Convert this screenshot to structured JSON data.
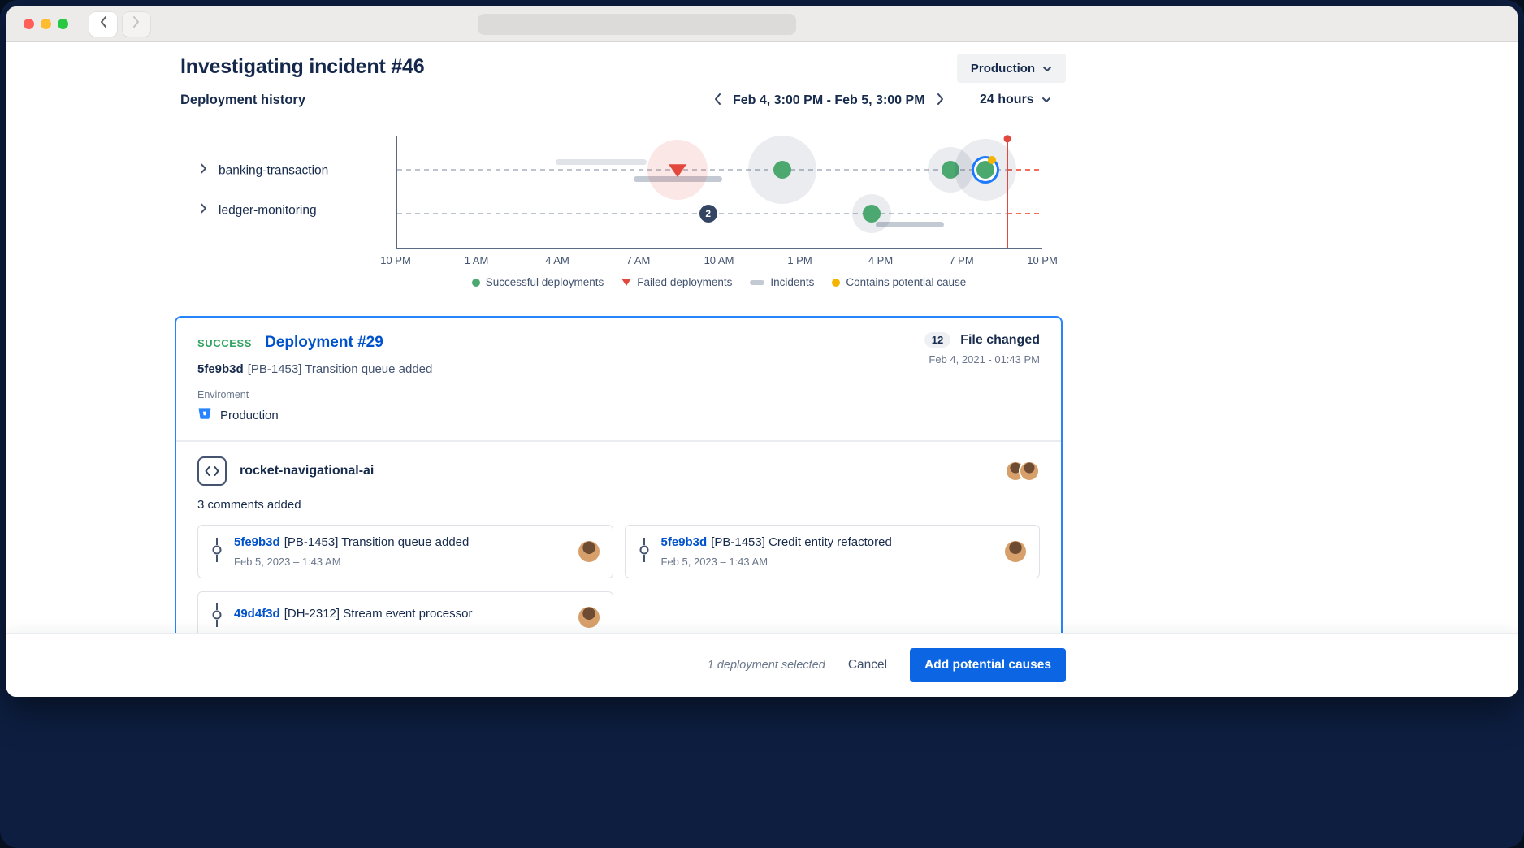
{
  "page": {
    "title": "Investigating incident #46",
    "env_dropdown_label": "Production",
    "section": {
      "title": "Deployment history",
      "date_range": "Feb 4, 3:00 PM - Feb 5, 3:00 PM",
      "range_label": "24 hours"
    }
  },
  "chart": {
    "rows": [
      {
        "label": "banking-transaction"
      },
      {
        "label": "ledger-monitoring"
      }
    ],
    "x_ticks": [
      "10 PM",
      "1 AM",
      "4 AM",
      "7 AM",
      "10 AM",
      "1 PM",
      "4 PM",
      "7 PM",
      "10 PM"
    ],
    "legend": [
      {
        "icon": "success-dot",
        "label": "Successful deployments"
      },
      {
        "icon": "failed-triangle",
        "label": "Failed deployments"
      },
      {
        "icon": "incident-bar",
        "label": "Incidents"
      },
      {
        "icon": "potential-cause-dot",
        "label": "Contains potential cause"
      }
    ],
    "markers": [
      {
        "type": "bar",
        "row": 0,
        "x": 24.5,
        "w": 14.2,
        "dy": -10,
        "shade": "light"
      },
      {
        "type": "bar",
        "row": 0,
        "x": 36.6,
        "w": 13.8,
        "dy": 11,
        "shade": "dark"
      },
      {
        "type": "failed",
        "row": 0,
        "x": 43.5,
        "halo": 74
      },
      {
        "type": "success",
        "row": 0,
        "x": 59.7,
        "halo": 84
      },
      {
        "type": "success",
        "row": 0,
        "x": 85.8,
        "halo": 56
      },
      {
        "type": "success",
        "row": 0,
        "x": 91.2,
        "halo": 76,
        "selected": true,
        "potential": true
      },
      {
        "type": "badge",
        "row": 1,
        "x": 48.2,
        "label": "2"
      },
      {
        "type": "success",
        "row": 1,
        "x": 73.5,
        "halo": 48
      },
      {
        "type": "bar",
        "row": 1,
        "x": 74.2,
        "w": 10.6,
        "dy": 13,
        "shade": "dark"
      },
      {
        "type": "cursor",
        "x": 94.6
      }
    ],
    "colors": {
      "success": "#4BA86F",
      "failed": "#E2483D",
      "incident": "#C4CAD3",
      "potential_cause": "#F5B400",
      "selected_ring": "#1D7AFC",
      "cursor": "#E2483D"
    }
  },
  "deployment": {
    "status": "SUCCESS",
    "title": "Deployment #29",
    "commit": {
      "hash": "5fe9b3d",
      "message": "[PB-1453] Transition queue added"
    },
    "files": {
      "count": "12",
      "label": "File changed",
      "timestamp": "Feb 4, 2021 - 01:43 PM"
    },
    "environment": {
      "label": "Enviroment",
      "value": "Production"
    },
    "repo": {
      "name": "rocket-navigational-ai",
      "comments_text": "3 comments added"
    },
    "commits": [
      {
        "hash": "5fe9b3d",
        "message": "[PB-1453] Transition queue added",
        "date": "Feb 5, 2023 – 1:43 AM"
      },
      {
        "hash": "5fe9b3d",
        "message": "[PB-1453] Credit entity refactored",
        "date": "Feb 5, 2023 – 1:43 AM"
      },
      {
        "hash": "49d4f3d",
        "message": "[DH-2312] Stream event processor",
        "date": ""
      }
    ]
  },
  "footer": {
    "selection_text": "1 deployment selected",
    "cancel_label": "Cancel",
    "primary_label": "Add potential causes"
  }
}
